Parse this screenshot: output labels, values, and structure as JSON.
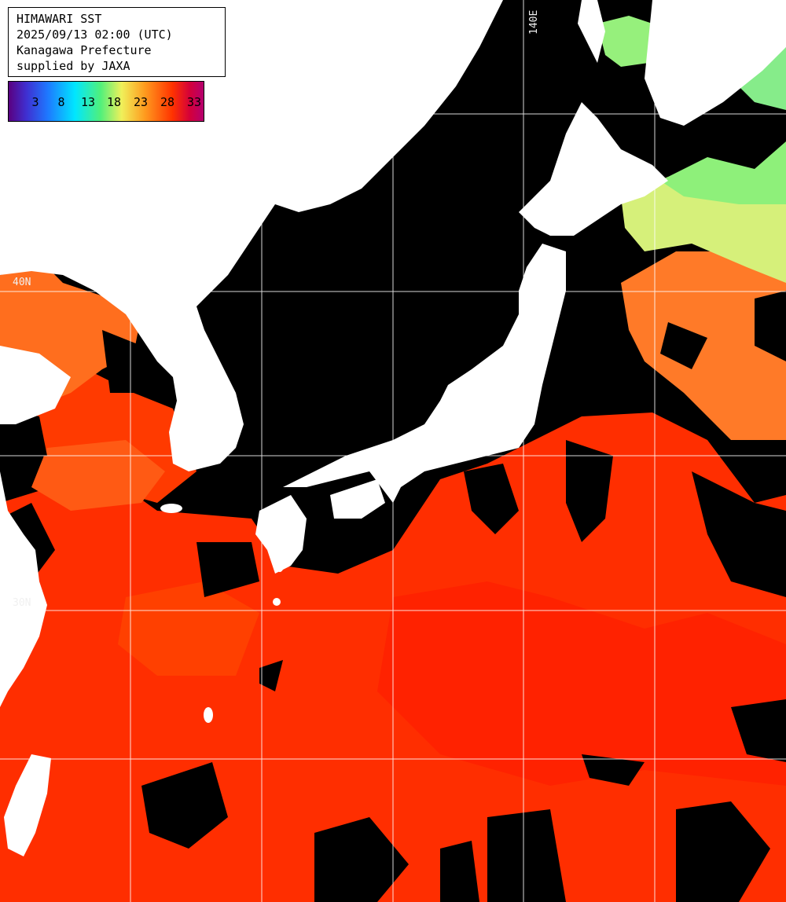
{
  "header": {
    "lines": [
      "HIMAWARI SST",
      "2025/09/13 02:00 (UTC)",
      "Kanagawa Prefecture",
      "supplied by JAXA"
    ]
  },
  "legend": {
    "ticks": [
      "3",
      "8",
      "13",
      "18",
      "23",
      "28",
      "33"
    ],
    "colors": [
      "#5a0080",
      "#3f2fd0",
      "#1e78ff",
      "#00e6ff",
      "#4ff07c",
      "#f0f05a",
      "#ff9a1e",
      "#ff3300",
      "#d4003a",
      "#b4006e"
    ]
  },
  "grid": {
    "lon_label": "140E",
    "lat_labels": [
      "40N",
      "30N"
    ]
  },
  "colors": {
    "land": "#ffffff",
    "no_data_cloud": "#000000",
    "warm_sea": "#ff2a00",
    "mid_sea": "#ff6a20",
    "cool_sea": "#c8ee6c",
    "gridline": "#ffffff"
  }
}
